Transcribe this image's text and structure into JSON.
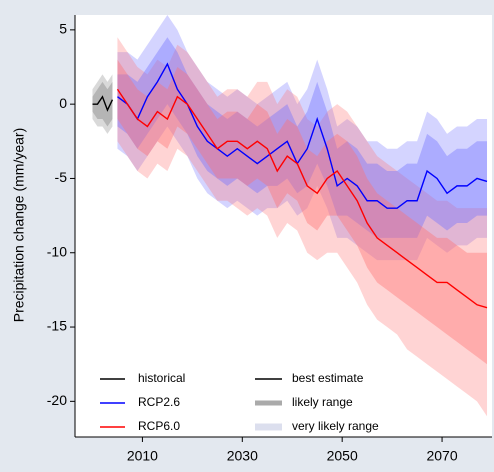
{
  "chart_data": {
    "type": "line",
    "ylabel": "Precipitation change (mm/year)",
    "xlim": [
      1996.5,
      2080
    ],
    "xticks": [
      2010,
      2030,
      2050,
      2070
    ],
    "ylim": [
      -22.4,
      6
    ],
    "yticks": [
      5,
      0,
      -5,
      -10,
      -15,
      -20
    ],
    "series": [
      {
        "name": "historical",
        "color": "#000000",
        "band_color": "#808080",
        "x": [
          2000,
          2001,
          2002,
          2003,
          2004
        ],
        "values": [
          0,
          0,
          0.5,
          -0.4,
          0.3
        ],
        "likely_low": [
          -0.5,
          -1,
          -1,
          -1.5,
          -1
        ],
        "likely_high": [
          0.5,
          1,
          1.5,
          1,
          1.5
        ],
        "very_likely_low": [
          -1,
          -1.5,
          -1.5,
          -2,
          -1.5
        ],
        "very_likely_high": [
          1,
          1.5,
          2,
          1.5,
          2
        ]
      },
      {
        "name": "RCP2.6",
        "color": "#0000ff",
        "band_color": "#7070ff",
        "x": [
          2005,
          2007,
          2009,
          2011,
          2013,
          2015,
          2017,
          2019,
          2021,
          2023,
          2025,
          2027,
          2029,
          2031,
          2033,
          2035,
          2037,
          2039,
          2041,
          2043,
          2045,
          2047,
          2049,
          2051,
          2053,
          2055,
          2057,
          2059,
          2061,
          2063,
          2065,
          2067,
          2069,
          2071,
          2073,
          2075,
          2077,
          2079
        ],
        "values": [
          0.5,
          0,
          -1,
          0.5,
          1.5,
          2.7,
          1,
          0,
          -1.5,
          -2.5,
          -3,
          -3.5,
          -3,
          -3.5,
          -4,
          -3.5,
          -3,
          -2.5,
          -4,
          -3,
          -1,
          -3,
          -5.5,
          -5,
          -5.5,
          -6.5,
          -6.5,
          -7,
          -7,
          -6.5,
          -6.5,
          -4.5,
          -5,
          -6,
          -5.5,
          -5.5,
          -5,
          -5.2
        ],
        "likely_low": [
          -1.5,
          -2,
          -3,
          -2,
          -1,
          0,
          -1,
          -2,
          -3.5,
          -4.5,
          -5,
          -5.5,
          -5,
          -5.5,
          -6,
          -5.5,
          -5.5,
          -5,
          -6,
          -5.5,
          -4,
          -5.5,
          -7.5,
          -7.5,
          -8,
          -8.5,
          -9,
          -9,
          -9,
          -9,
          -9,
          -7.5,
          -8,
          -8.5,
          -8,
          -8,
          -7.5,
          -7.5
        ],
        "likely_high": [
          2,
          2,
          1.5,
          2.5,
          3.5,
          4.5,
          3.5,
          2,
          1,
          0,
          -0.5,
          -1,
          -0.5,
          -1,
          -1.5,
          -1,
          -0.5,
          0,
          -1.5,
          -0.5,
          1.5,
          -0.5,
          -3,
          -2.5,
          -3,
          -4,
          -4,
          -4.5,
          -4.5,
          -4,
          -4,
          -2,
          -2.5,
          -3.5,
          -3,
          -3,
          -2.5,
          -2.5
        ],
        "very_likely_low": [
          -3,
          -3.5,
          -4.5,
          -3.5,
          -2.5,
          -1.5,
          -2.5,
          -3.5,
          -5,
          -6,
          -6.5,
          -7,
          -6.5,
          -7,
          -7.5,
          -7,
          -7,
          -6.5,
          -7.5,
          -7,
          -5.5,
          -7,
          -9,
          -9,
          -9.5,
          -10,
          -10.5,
          -10.5,
          -10.5,
          -10.5,
          -10.5,
          -9,
          -9.5,
          -10,
          -9.5,
          -9.5,
          -9,
          -9
        ],
        "very_likely_high": [
          3.5,
          3.5,
          3,
          4,
          5,
          6,
          5,
          3.5,
          2.5,
          1.5,
          1,
          0.5,
          1,
          0.5,
          0,
          0.5,
          1,
          1.5,
          0,
          1,
          3,
          1,
          -1.5,
          -1,
          -1.5,
          -2.5,
          -2.5,
          -3,
          -3,
          -2.5,
          -2.5,
          -0.5,
          -1,
          -2,
          -1.5,
          -1.5,
          -1,
          -1
        ]
      },
      {
        "name": "RCP6.0",
        "color": "#ff0000",
        "band_color": "#ff7070",
        "x": [
          2005,
          2007,
          2009,
          2011,
          2013,
          2015,
          2017,
          2019,
          2021,
          2023,
          2025,
          2027,
          2029,
          2031,
          2033,
          2035,
          2037,
          2039,
          2041,
          2043,
          2045,
          2047,
          2049,
          2051,
          2053,
          2055,
          2057,
          2059,
          2061,
          2063,
          2065,
          2067,
          2069,
          2071,
          2073,
          2075,
          2077,
          2079
        ],
        "values": [
          1,
          0,
          -1,
          -1.5,
          -0.5,
          -1,
          0.5,
          0,
          -1,
          -2,
          -3,
          -2.5,
          -2.5,
          -3,
          -2.5,
          -3,
          -4.5,
          -3.5,
          -4,
          -5.5,
          -6,
          -5,
          -4.5,
          -5.5,
          -6.5,
          -8,
          -9,
          -9.5,
          -10,
          -10.5,
          -11,
          -11.5,
          -12,
          -12,
          -12.5,
          -13,
          -13.5,
          -13.7
        ],
        "likely_low": [
          -1,
          -2,
          -3,
          -3.5,
          -2.5,
          -3,
          -1.5,
          -2,
          -3,
          -4,
          -5,
          -5,
          -5,
          -5.5,
          -5,
          -5.5,
          -7,
          -6,
          -6.5,
          -8,
          -8.5,
          -7.5,
          -7.5,
          -8.5,
          -9.5,
          -11,
          -12,
          -12.5,
          -13,
          -13.5,
          -14,
          -14.5,
          -15,
          -15.5,
          -16,
          -16.5,
          -17,
          -17.5
        ],
        "likely_high": [
          3,
          2,
          1,
          0.5,
          1.5,
          1,
          2.5,
          2,
          1,
          0,
          -1,
          -0.5,
          -0.5,
          -1,
          0,
          -0.5,
          -2,
          -1,
          -1.5,
          -3,
          -3.5,
          -2.5,
          -2,
          -2.5,
          -3.5,
          -5,
          -6,
          -6.5,
          -7,
          -7.5,
          -8,
          -8.5,
          -9,
          -9,
          -9.5,
          -10,
          -10,
          -10
        ],
        "very_likely_low": [
          -2.5,
          -3.5,
          -4.5,
          -5,
          -4,
          -4.5,
          -3,
          -3.5,
          -4.5,
          -5.5,
          -6.5,
          -6.5,
          -7,
          -7.5,
          -7,
          -7.5,
          -9,
          -8,
          -8.5,
          -10,
          -10.5,
          -10,
          -10,
          -11,
          -12,
          -13.5,
          -14.5,
          -15,
          -15.5,
          -16.5,
          -17,
          -17.5,
          -18,
          -18.5,
          -19,
          -19.5,
          -20,
          -21
        ],
        "very_likely_high": [
          4.5,
          3.5,
          2.5,
          2,
          3,
          2.5,
          4,
          3.5,
          2.5,
          1.5,
          0.5,
          1,
          1,
          0.5,
          1.5,
          1.5,
          0,
          1,
          0.5,
          -1,
          -1.5,
          -0.5,
          0,
          -0.5,
          -1.5,
          -2.5,
          -3.5,
          -4,
          -4.5,
          -5,
          -5.5,
          -6,
          -6.5,
          -6.5,
          -7,
          -7,
          -7,
          -7
        ]
      }
    ],
    "legend_styles": [
      "best estimate",
      "likely range",
      "very likely range"
    ]
  }
}
